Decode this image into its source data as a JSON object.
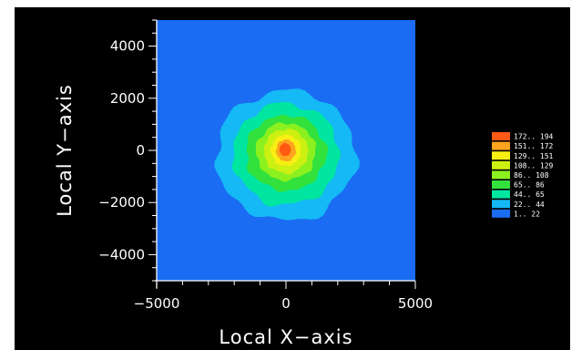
{
  "chart_data": {
    "type": "heatmap",
    "title": "",
    "xlabel": "Local X−axis",
    "ylabel": "Local Y−axis",
    "xlim": [
      -5000,
      5000
    ],
    "ylim": [
      -5000,
      5000
    ],
    "x_ticks": [
      "−5000",
      "0",
      "5000"
    ],
    "y_ticks": [
      "4000",
      "2000",
      "0",
      "−2000",
      "−4000"
    ],
    "background_color": "#1a6cf2",
    "legend_position": "right",
    "legend": [
      {
        "range": "172.. 194",
        "color": "#ff5a14"
      },
      {
        "range": "151.. 172",
        "color": "#ffa41e"
      },
      {
        "range": "129.. 151",
        "color": "#f7ef14"
      },
      {
        "range": "108.. 129",
        "color": "#ccf012"
      },
      {
        "range": "86.. 108",
        "color": "#8cf01e"
      },
      {
        "range": "65.. 86",
        "color": "#32e13c"
      },
      {
        "range": "44.. 65",
        "color": "#00e6a0"
      },
      {
        "range": "22.. 44",
        "color": "#14b9f5"
      },
      {
        "range": "1.. 22",
        "color": "#1a6cf2"
      }
    ],
    "contours": [
      {
        "level": "22.. 44",
        "cx": 0,
        "cy": -200,
        "rx": 2700,
        "ry": 2500
      },
      {
        "level": "44.. 65",
        "cx": 0,
        "cy": -150,
        "rx": 2050,
        "ry": 1950
      },
      {
        "level": "65.. 86",
        "cx": 0,
        "cy": -100,
        "rx": 1550,
        "ry": 1450
      },
      {
        "level": "86.. 108",
        "cx": 0,
        "cy": -50,
        "rx": 1150,
        "ry": 1100
      },
      {
        "level": "108.. 129",
        "cx": 0,
        "cy": -30,
        "rx": 850,
        "ry": 850
      },
      {
        "level": "129.. 151",
        "cx": 0,
        "cy": 0,
        "rx": 580,
        "ry": 600
      },
      {
        "level": "151.. 172",
        "cx": 0,
        "cy": 0,
        "rx": 380,
        "ry": 420
      },
      {
        "level": "172.. 194",
        "cx": -30,
        "cy": 30,
        "rx": 220,
        "ry": 250
      }
    ]
  }
}
